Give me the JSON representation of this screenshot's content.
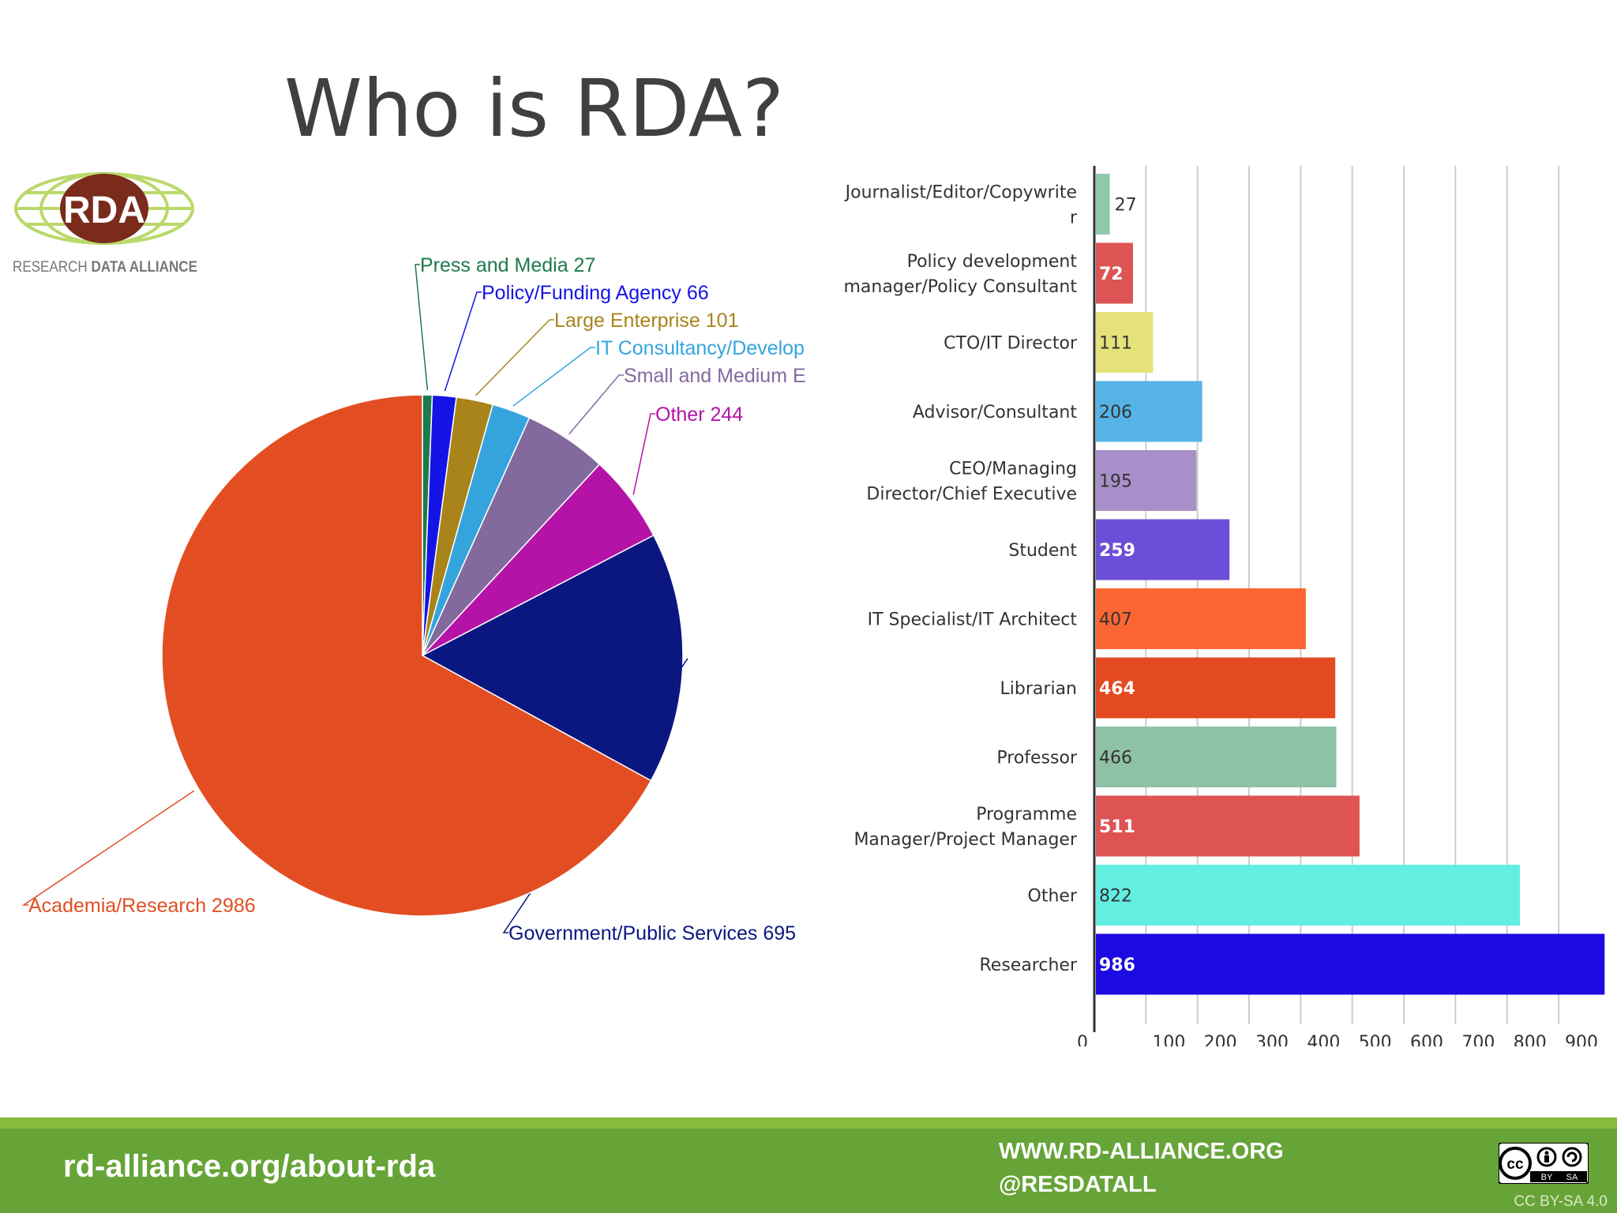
{
  "slide": {
    "title": "Who is RDA?"
  },
  "logo": {
    "mark_text": "RDA",
    "wordmark_left": "RESEARCH",
    "wordmark_right": "DATA ALLIANCE",
    "colors": {
      "mark": "#7a2b1c",
      "globe": "#b9d96a",
      "text": "#777777"
    }
  },
  "chart_data": [
    {
      "type": "pie",
      "slices": [
        {
          "label": "Press and Media 27",
          "value": 27,
          "color": "#1d7a4c"
        },
        {
          "label": "Policy/Funding Agency 66",
          "value": 66,
          "color": "#1414e6"
        },
        {
          "label": "Large Enterprise 101",
          "value": 101,
          "color": "#a8841a"
        },
        {
          "label": "IT Consultancy/Develop",
          "value": 106,
          "color": "#35a4dd"
        },
        {
          "label": "Small and Medium E",
          "value": 230,
          "color": "#826a9e"
        },
        {
          "label": "Other 244",
          "value": 244,
          "color": "#b513a8"
        },
        {
          "label": "Government/Public Services 695",
          "value": 695,
          "color": "#0b1780"
        },
        {
          "label": "Academia/Research 2986",
          "value": 2986,
          "color": "#e24e22"
        }
      ]
    },
    {
      "type": "bar",
      "orientation": "horizontal",
      "categories": [
        "Journalist/Editor/Copywriter",
        "Policy development manager/Policy Consultant",
        "CTO/IT Director",
        "Advisor/Consultant",
        "CEO/Managing Director/Chief Executive",
        "Student",
        "IT Specialist/IT Architect",
        "Librarian",
        "Professor",
        "Programme Manager/Project Manager",
        "Other",
        "Researcher"
      ],
      "label_lines": [
        [
          "Journalist/Editor/Copywrite",
          "r"
        ],
        [
          "Policy development",
          "manager/Policy Consultant"
        ],
        [
          "CTO/IT Director"
        ],
        [
          "Advisor/Consultant"
        ],
        [
          "CEO/Managing",
          "Director/Chief Executive"
        ],
        [
          "Student"
        ],
        [
          "IT Specialist/IT Architect"
        ],
        [
          "Librarian"
        ],
        [
          "Professor"
        ],
        [
          "Programme",
          "Manager/Project Manager"
        ],
        [
          "Other"
        ],
        [
          "Researcher"
        ]
      ],
      "values": [
        27,
        72,
        111,
        206,
        195,
        259,
        407,
        464,
        466,
        511,
        822,
        986
      ],
      "value_labels": [
        "27",
        "72",
        "111",
        "206",
        "195",
        "259",
        "407",
        "464",
        "466",
        "511",
        "822",
        "986"
      ],
      "colors": [
        "#8fc9a8",
        "#dd5454",
        "#e6e27a",
        "#55b3e6",
        "#a98fc9",
        "#6c4fd8",
        "#fc6633",
        "#e44a21",
        "#8fc1a5",
        "#de5454",
        "#62efe2",
        "#1c0ae0"
      ],
      "value_label_colors": [
        "#333333",
        "#ffffff",
        "#333333",
        "#333333",
        "#333333",
        "#ffffff",
        "#333333",
        "#ffffff",
        "#333333",
        "#ffffff",
        "#333333",
        "#ffffff"
      ],
      "xticks": [
        "0",
        "100",
        "200",
        "300",
        "400",
        "500",
        "600",
        "700",
        "800",
        "900"
      ],
      "xlim": [
        0,
        990
      ],
      "grid": true
    }
  ],
  "footer": {
    "url": "rd-alliance.org/about-rda",
    "site": "WWW.RD-ALLIANCE.ORG",
    "handle": "@RESDATALL",
    "license_icons": [
      "cc-icon",
      "by-icon",
      "sa-icon"
    ],
    "license_badge_by": "BY",
    "license_badge_sa": "SA",
    "license_text": "CC BY-SA 4.0",
    "colors": {
      "bar": "#67a438",
      "stripe": "#86bd3f"
    }
  }
}
